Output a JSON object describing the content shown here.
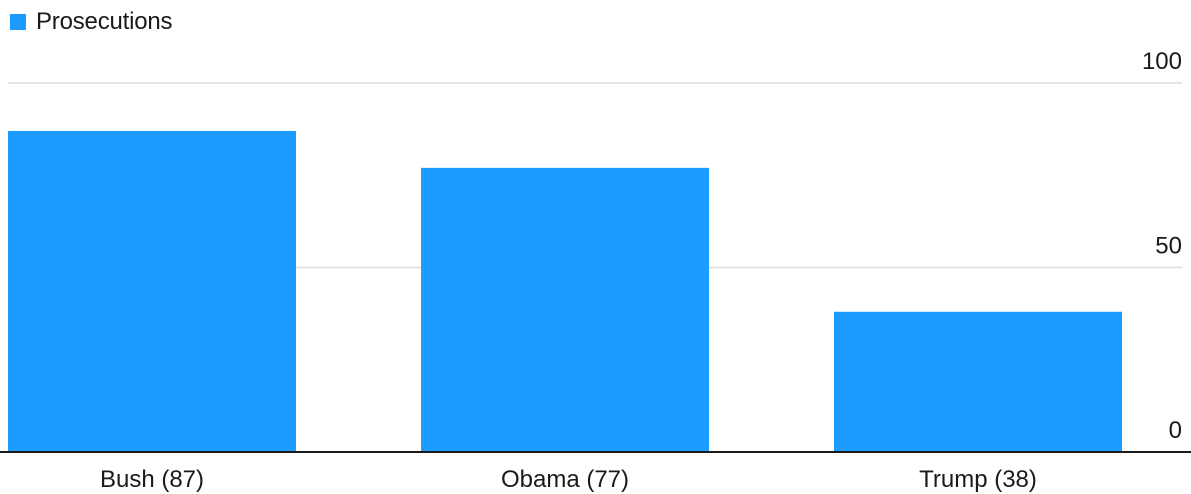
{
  "chart_data": {
    "type": "bar",
    "categories": [
      "Bush (87)",
      "Obama (77)",
      "Trump (38)"
    ],
    "series": [
      {
        "name": "Prosecutions",
        "values": [
          87,
          77,
          38
        ],
        "color": "#1e9bff"
      }
    ],
    "ylim": [
      0,
      100
    ],
    "yticks": [
      0,
      50,
      100
    ],
    "ytick_labels": [
      "0",
      "50",
      "100"
    ],
    "y_axis_side": "right",
    "grid": true,
    "legend": "top-left"
  }
}
